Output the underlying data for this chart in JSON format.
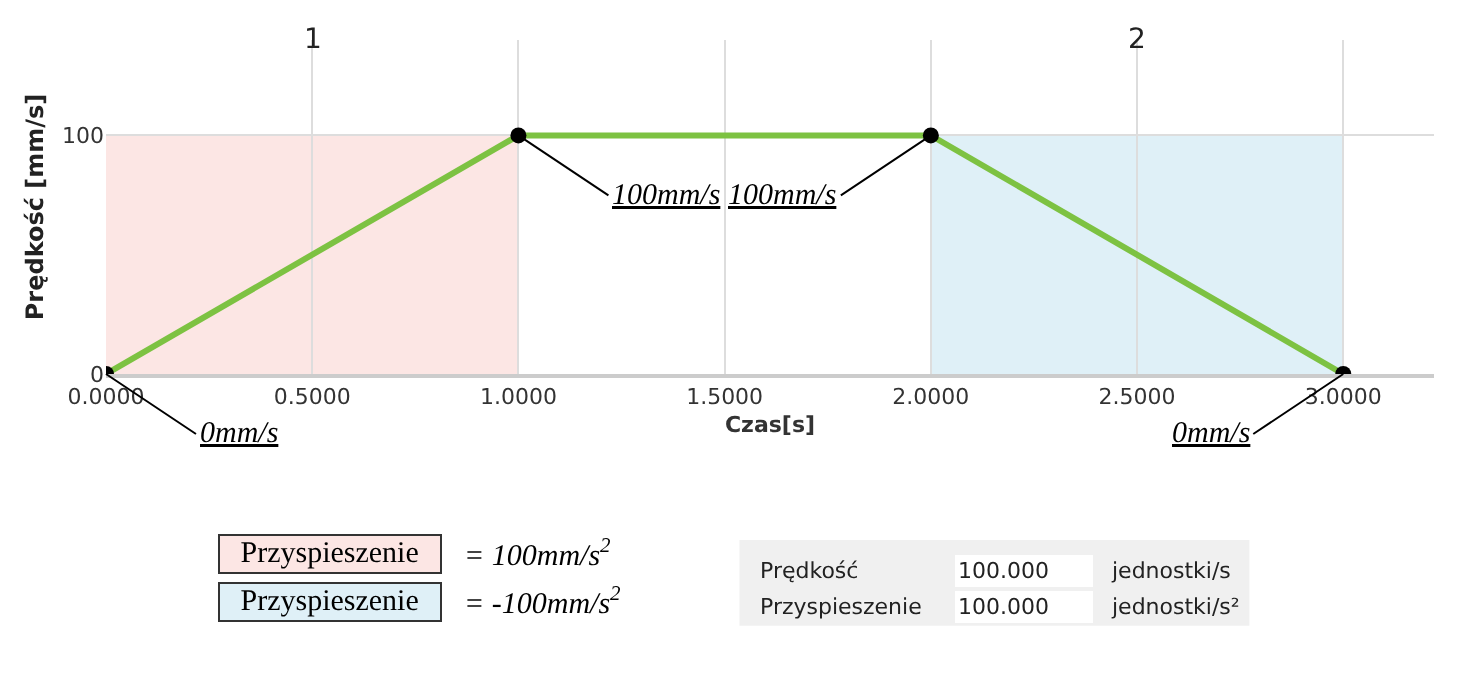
{
  "chart_data": {
    "type": "line",
    "xlabel": "Czas[s]",
    "ylabel": "Prędkość [mm/s]",
    "x": [
      0,
      1,
      2,
      3
    ],
    "series": [
      {
        "color": "#7dc242",
        "values": [
          0,
          100,
          100,
          0
        ]
      }
    ],
    "marker": "circle",
    "line_style": "solid",
    "grid": true,
    "xlim": [
      0,
      3.22
    ],
    "xticks": [
      {
        "value": 0,
        "label": "0.0000"
      },
      {
        "value": 0.5,
        "label": "0.5000"
      },
      {
        "value": 1,
        "label": "1.0000"
      },
      {
        "value": 1.5,
        "label": "1.5000"
      },
      {
        "value": 2,
        "label": "2.0000"
      },
      {
        "value": 2.5,
        "label": "2.5000"
      },
      {
        "value": 3,
        "label": "3.0000"
      }
    ],
    "ylim": [
      0,
      140
    ],
    "yticks": [
      0,
      100
    ],
    "bands": [
      {
        "axis": "x",
        "from": 0,
        "to": 1,
        "label": "1",
        "color": "#fce6e4"
      },
      {
        "axis": "x",
        "from": 2,
        "to": 3,
        "label": "2",
        "color": "#dff0f7"
      }
    ],
    "annotations": [
      {
        "text": "0mm/s",
        "x": 0,
        "y": 0
      },
      {
        "text": "100mm/s",
        "x": 1,
        "y": 100
      },
      {
        "text": "100mm/s",
        "x": 2,
        "y": 100
      },
      {
        "text": "0mm/s",
        "x": 3,
        "y": 0
      },
      "Przyspieszenie",
      "= 100mm/s$^{2}$",
      "Przyspieszenie",
      "= -100mm/s$^{2}$",
      "Prędkość",
      "100.000",
      "jednostki/s",
      "Przyspieszenie",
      "100.000",
      "jednostki/s²"
    ]
  }
}
